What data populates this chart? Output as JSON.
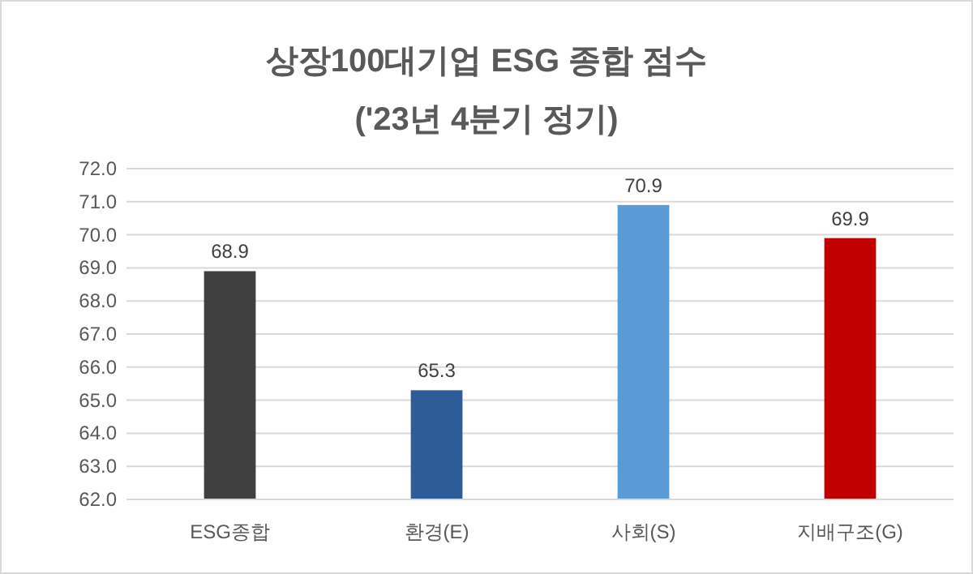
{
  "chart_data": {
    "type": "bar",
    "title": "상장100대기업 ESG 종합 점수",
    "subtitle": "('23년 4분기 정기)",
    "categories": [
      "ESG종합",
      "환경(E)",
      "사회(S)",
      "지배구조(G)"
    ],
    "values": [
      68.9,
      65.3,
      70.9,
      69.9
    ],
    "colors": [
      "#404040",
      "#2e5c99",
      "#5b9bd5",
      "#c00000"
    ],
    "ylim": [
      62,
      72
    ],
    "yticks": [
      {
        "value": 62,
        "label": "62.0"
      },
      {
        "value": 63,
        "label": "63.0"
      },
      {
        "value": 64,
        "label": "64.0"
      },
      {
        "value": 65,
        "label": "65.0"
      },
      {
        "value": 66,
        "label": "66.0"
      },
      {
        "value": 67,
        "label": "67.0"
      },
      {
        "value": 68,
        "label": "68.0"
      },
      {
        "value": 69,
        "label": "69.0"
      },
      {
        "value": 70,
        "label": "70.0"
      },
      {
        "value": 71,
        "label": "71.0"
      },
      {
        "value": 72,
        "label": "72.0"
      }
    ],
    "grid": "y",
    "data_labels": true
  }
}
